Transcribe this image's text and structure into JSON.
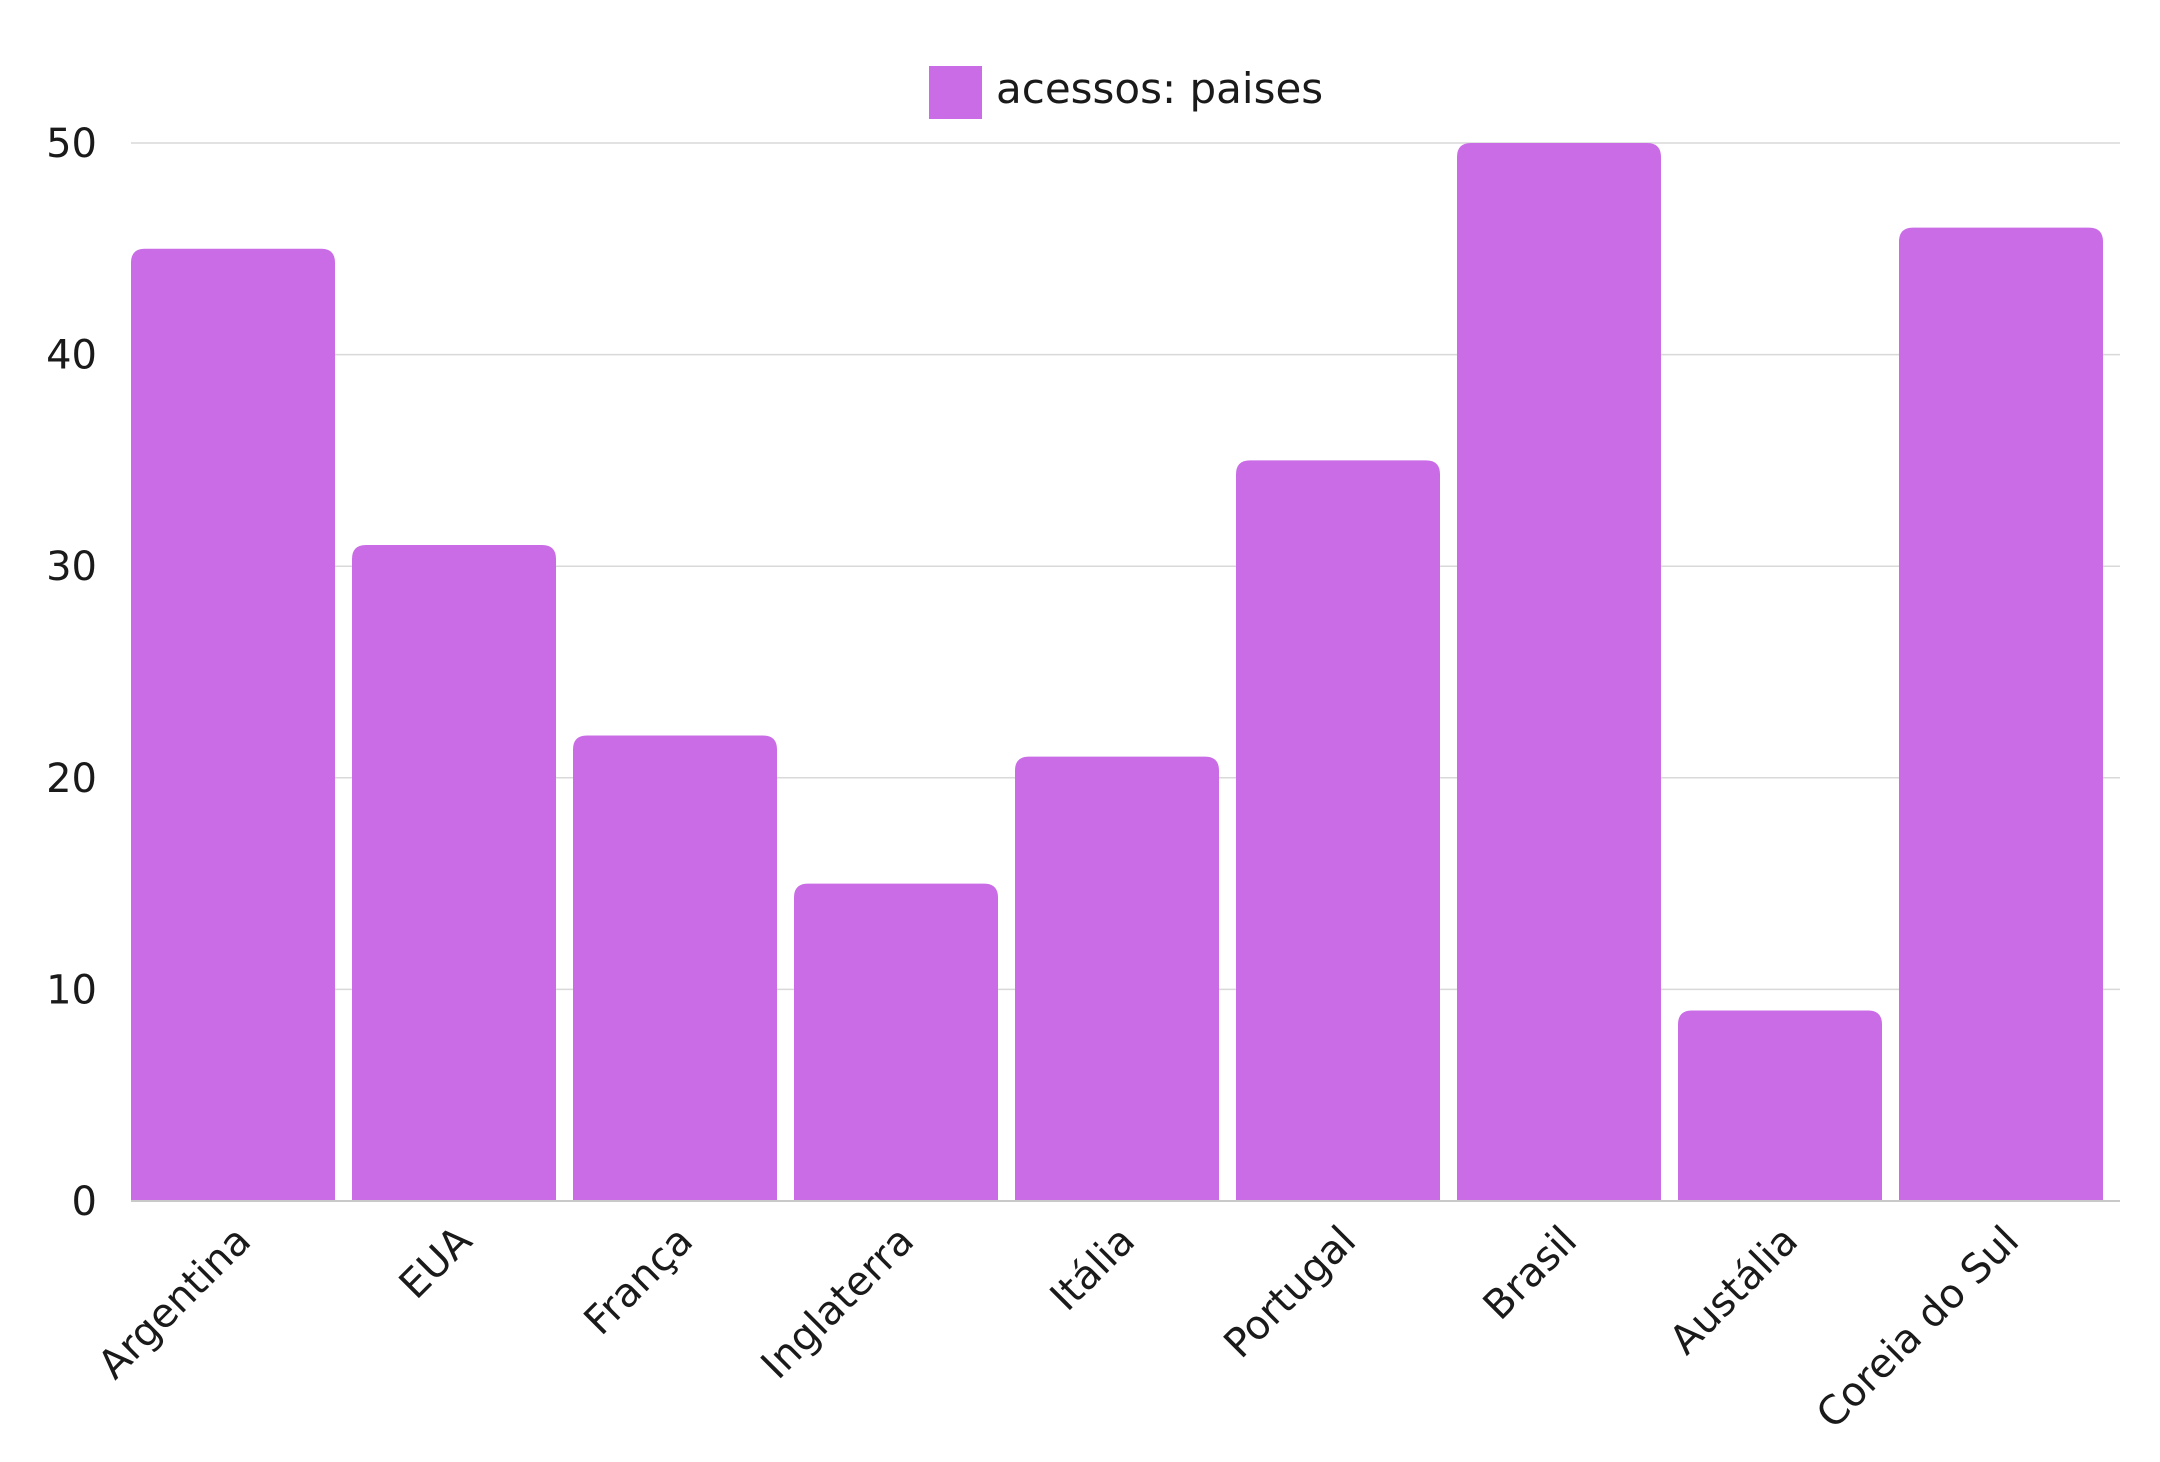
{
  "chart_data": {
    "type": "bar",
    "categories": [
      "Argentina",
      "EUA",
      "França",
      "Inglaterra",
      "Itália",
      "Portugal",
      "Brasil",
      "Austália",
      "Coreia do Sul"
    ],
    "series": [
      {
        "name": "acessos: paises",
        "values": [
          45,
          31,
          22,
          15,
          21,
          35,
          50,
          9,
          46
        ],
        "color": "#c96ce6"
      }
    ],
    "ylim": [
      0,
      50
    ],
    "yticks": [
      0,
      10,
      20,
      30,
      40,
      50
    ],
    "title": "",
    "xlabel": "",
    "ylabel": "",
    "grid": true,
    "legend_position": "top-center",
    "gridline_color": "#d9d9d9",
    "axis_color": "#c9c9c9"
  }
}
